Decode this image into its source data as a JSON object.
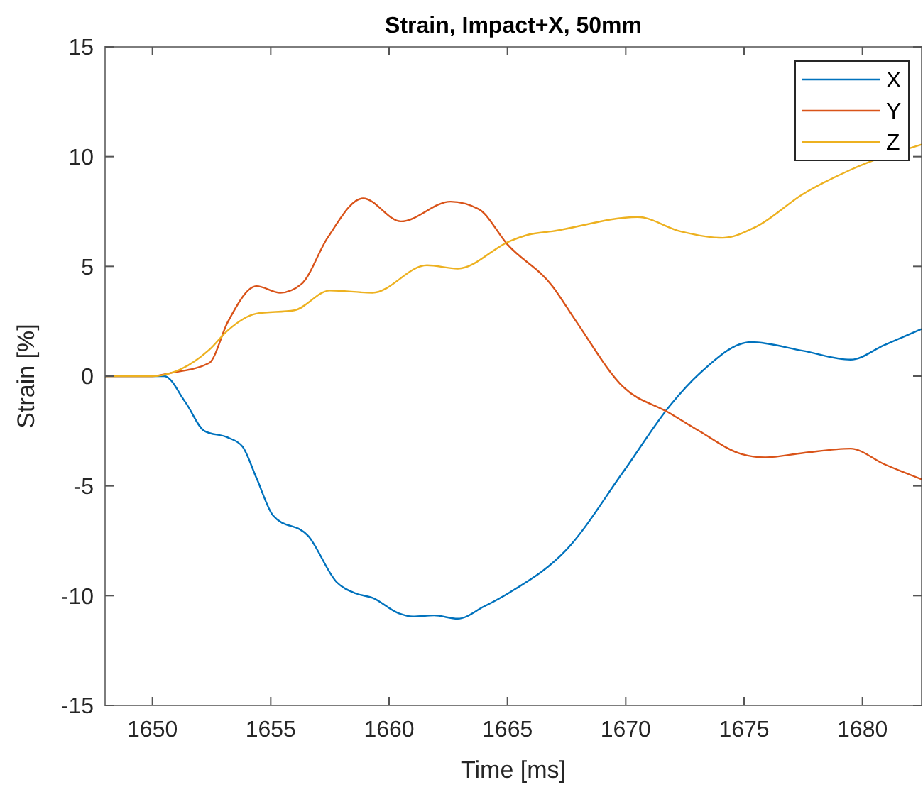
{
  "chart_data": {
    "type": "line",
    "title": "Strain, Impact+X, 50mm",
    "xlabel": "Time [ms]",
    "ylabel": "Strain [%]",
    "xlim": [
      1648,
      1682.5
    ],
    "ylim": [
      -15,
      15
    ],
    "xticks": [
      1650,
      1655,
      1660,
      1665,
      1670,
      1675,
      1680
    ],
    "yticks": [
      -15,
      -10,
      -5,
      0,
      5,
      10,
      15
    ],
    "grid": false,
    "legend": "top right",
    "marker": "none",
    "line_style": "solid",
    "series": [
      {
        "name": "X",
        "color": "#0072bd",
        "x": [
          1648,
          1650.5,
          1651.4,
          1652.2,
          1653.2,
          1653.8,
          1654.4,
          1655.1,
          1656.6,
          1657.8,
          1658.6,
          1659.3,
          1660.4,
          1661,
          1661.9,
          1662.9,
          1664,
          1665.1,
          1667.5,
          1669.9,
          1671.9,
          1673.1,
          1675.3,
          1677.5,
          1679.5,
          1680.9,
          1682.5
        ],
        "values": [
          0,
          0,
          -1.2,
          -2.5,
          -2.8,
          -3.2,
          -4.65,
          -6.35,
          -7.3,
          -9.4,
          -9.9,
          -10.1,
          -10.8,
          -10.95,
          -10.9,
          -11.05,
          -10.5,
          -9.85,
          -7.9,
          -4.35,
          -1.3,
          0.1,
          1.55,
          1.15,
          0.75,
          1.4,
          2.15
        ]
      },
      {
        "name": "Y",
        "color": "#d95319",
        "x": [
          1648,
          1650,
          1650.8,
          1652.4,
          1653.2,
          1654.4,
          1655.4,
          1656.3,
          1657.4,
          1658.9,
          1660.5,
          1662.6,
          1663.8,
          1665,
          1666.9,
          1667.9,
          1669.9,
          1671.8,
          1673.1,
          1674.9,
          1675.9,
          1677.5,
          1679.5,
          1680.9,
          1682.5
        ],
        "values": [
          0,
          0,
          0.15,
          0.6,
          2.5,
          4.1,
          3.8,
          4.2,
          6.3,
          8.1,
          7.05,
          7.95,
          7.6,
          6.0,
          4.1,
          2.5,
          -0.5,
          -1.65,
          -2.5,
          -3.55,
          -3.7,
          -3.5,
          -3.3,
          -4,
          -4.7
        ]
      },
      {
        "name": "Z",
        "color": "#edb120",
        "x": [
          1648,
          1650,
          1650.8,
          1652.4,
          1653.2,
          1654.4,
          1656,
          1657.5,
          1659.3,
          1661.6,
          1662.9,
          1665.1,
          1665.9,
          1666.9,
          1670.5,
          1672.3,
          1674.1,
          1675.5,
          1677.5,
          1679.5,
          1682.5
        ],
        "values": [
          0,
          0,
          0.15,
          1.2,
          2.1,
          2.85,
          3.0,
          3.9,
          3.8,
          5.05,
          4.9,
          6.15,
          6.45,
          6.6,
          7.25,
          6.6,
          6.3,
          6.8,
          8.3,
          9.4,
          10.55
        ]
      }
    ]
  }
}
